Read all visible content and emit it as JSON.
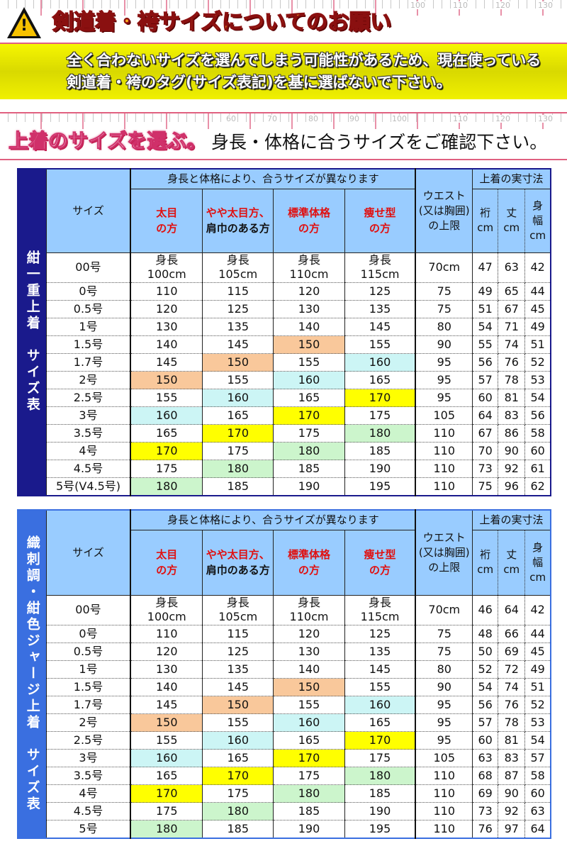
{
  "banner": {
    "title": "剣道着・袴サイズについてのお願い",
    "icon": "warning-icon",
    "ruler_numbers": [
      "100",
      "110",
      "120",
      "130"
    ],
    "notice_lines": [
      "全く合わないサイズを選んでしまう可能性があるため、現在使っている",
      "剣道着・袴のタグ(サイズ表記)を基に選ばないで下さい。"
    ]
  },
  "section": {
    "title": "上着のサイズを選ぶ。",
    "subtitle": "身長・体格に合うサイズをご確認下さい。",
    "ruler_numbers": [
      "60",
      "70",
      "80",
      "90",
      "100",
      "110",
      "120",
      "130"
    ]
  },
  "highlight_colors": {
    "150": "#f9c89b",
    "160": "#ccf5f5",
    "170": "#ffff00",
    "180": "#ccf5cc"
  },
  "header": {
    "size": "サイズ",
    "group": "身長と体格により、合うサイズが異なります",
    "types": [
      {
        "l1": "太目",
        "l2": "の方",
        "red2": true
      },
      {
        "l1": "やや太目方、",
        "l2": "肩巾のある方",
        "red2": false
      },
      {
        "l1": "標準体格",
        "l2": "の方",
        "red2": true
      },
      {
        "l1": "痩せ型",
        "l2": "の方",
        "red2": true
      }
    ],
    "waist": "ウエスト(又は胸囲)の上限",
    "measure": "上着の実寸法",
    "m1": "裄cm",
    "m2": "丈cm",
    "m3": "身幅cm",
    "height_label": "身長"
  },
  "tables": [
    {
      "side": "紺一重上着　サイズ表",
      "rows": [
        [
          "00号",
          "100cm",
          "105cm",
          "110cm",
          "115cm",
          "70cm",
          "47",
          "63",
          "42"
        ],
        [
          "0号",
          "110",
          "115",
          "120",
          "125",
          "75",
          "49",
          "65",
          "44"
        ],
        [
          "0.5号",
          "120",
          "125",
          "130",
          "135",
          "75",
          "51",
          "67",
          "45"
        ],
        [
          "1号",
          "130",
          "135",
          "140",
          "145",
          "80",
          "54",
          "71",
          "49"
        ],
        [
          "1.5号",
          "140",
          "145",
          "150",
          "155",
          "90",
          "55",
          "74",
          "51"
        ],
        [
          "1.7号",
          "145",
          "150",
          "155",
          "160",
          "95",
          "56",
          "76",
          "52"
        ],
        [
          "2号",
          "150",
          "155",
          "160",
          "165",
          "95",
          "57",
          "78",
          "53"
        ],
        [
          "2.5号",
          "155",
          "160",
          "165",
          "170",
          "95",
          "60",
          "81",
          "54"
        ],
        [
          "3号",
          "160",
          "165",
          "170",
          "175",
          "105",
          "64",
          "83",
          "56"
        ],
        [
          "3.5号",
          "165",
          "170",
          "175",
          "180",
          "110",
          "67",
          "86",
          "58"
        ],
        [
          "4号",
          "170",
          "175",
          "180",
          "185",
          "110",
          "70",
          "90",
          "60"
        ],
        [
          "4.5号",
          "175",
          "180",
          "185",
          "190",
          "110",
          "73",
          "92",
          "61"
        ],
        [
          "5号(V4.5号)",
          "180",
          "185",
          "190",
          "195",
          "110",
          "75",
          "96",
          "62"
        ]
      ]
    },
    {
      "side": "織刺調・紺色ジャージ上着　サイズ表",
      "rows": [
        [
          "00号",
          "100cm",
          "105cm",
          "110cm",
          "115cm",
          "70cm",
          "46",
          "64",
          "42"
        ],
        [
          "0号",
          "110",
          "115",
          "120",
          "125",
          "75",
          "48",
          "66",
          "44"
        ],
        [
          "0.5号",
          "120",
          "125",
          "130",
          "135",
          "75",
          "50",
          "69",
          "45"
        ],
        [
          "1号",
          "130",
          "135",
          "140",
          "145",
          "80",
          "52",
          "72",
          "49"
        ],
        [
          "1.5号",
          "140",
          "145",
          "150",
          "155",
          "90",
          "54",
          "74",
          "51"
        ],
        [
          "1.7号",
          "145",
          "150",
          "155",
          "160",
          "95",
          "56",
          "76",
          "52"
        ],
        [
          "2号",
          "150",
          "155",
          "160",
          "165",
          "95",
          "57",
          "78",
          "53"
        ],
        [
          "2.5号",
          "155",
          "160",
          "165",
          "170",
          "95",
          "60",
          "81",
          "54"
        ],
        [
          "3号",
          "160",
          "165",
          "170",
          "175",
          "105",
          "63",
          "83",
          "57"
        ],
        [
          "3.5号",
          "165",
          "170",
          "175",
          "180",
          "110",
          "68",
          "87",
          "58"
        ],
        [
          "4号",
          "170",
          "175",
          "180",
          "185",
          "110",
          "69",
          "90",
          "60"
        ],
        [
          "4.5号",
          "175",
          "180",
          "185",
          "190",
          "110",
          "73",
          "92",
          "63"
        ],
        [
          "5号",
          "180",
          "185",
          "190",
          "195",
          "110",
          "76",
          "97",
          "64"
        ]
      ]
    }
  ]
}
